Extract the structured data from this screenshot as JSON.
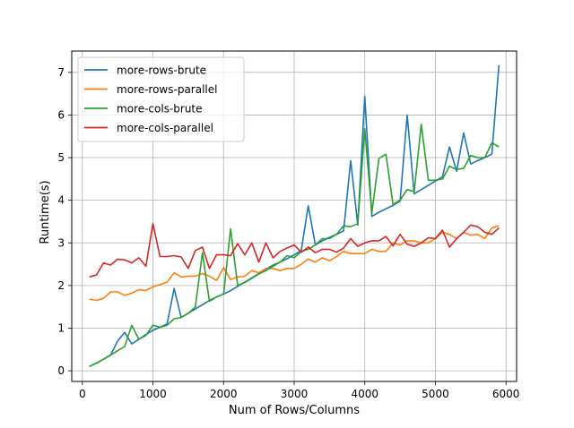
{
  "chart_data": {
    "type": "line",
    "title": "",
    "xlabel": "Num of Rows/Columns",
    "ylabel": "Runtime(s)",
    "xlim": [
      -150,
      6150
    ],
    "ylim": [
      -0.25,
      7.5
    ],
    "xticks": [
      0,
      1000,
      2000,
      3000,
      4000,
      5000,
      6000
    ],
    "yticks": [
      0,
      1,
      2,
      3,
      4,
      5,
      6,
      7
    ],
    "grid": true,
    "legend_position": "top-left",
    "x": [
      100,
      200,
      300,
      400,
      500,
      600,
      700,
      800,
      900,
      1000,
      1100,
      1200,
      1300,
      1400,
      1500,
      1600,
      1700,
      1800,
      1900,
      2000,
      2100,
      2200,
      2300,
      2400,
      2500,
      2600,
      2700,
      2800,
      2900,
      3000,
      3100,
      3200,
      3300,
      3400,
      3500,
      3600,
      3700,
      3800,
      3900,
      4000,
      4100,
      4200,
      4300,
      4400,
      4500,
      4600,
      4700,
      4800,
      4900,
      5000,
      5100,
      5200,
      5300,
      5400,
      5500,
      5600,
      5700,
      5800,
      5900
    ],
    "series": [
      {
        "name": "more-rows-brute",
        "color": "#1f77b4",
        "values": [
          0.1,
          0.18,
          0.27,
          0.37,
          0.7,
          0.9,
          0.63,
          0.74,
          0.85,
          0.95,
          1.02,
          1.1,
          1.93,
          1.25,
          1.35,
          1.45,
          1.55,
          1.65,
          1.73,
          1.8,
          1.88,
          1.98,
          2.08,
          2.18,
          2.28,
          2.38,
          2.48,
          2.55,
          2.63,
          2.72,
          2.82,
          3.87,
          2.95,
          3.05,
          3.13,
          3.2,
          3.28,
          4.93,
          3.42,
          6.44,
          3.62,
          3.72,
          3.8,
          3.88,
          3.98,
          6.0,
          4.15,
          4.25,
          4.35,
          4.45,
          4.55,
          5.25,
          4.68,
          5.58,
          4.85,
          4.93,
          5.0,
          5.08,
          7.17
        ]
      },
      {
        "name": "more-rows-parallel",
        "color": "#ff7f0e",
        "values": [
          1.68,
          1.65,
          1.7,
          1.85,
          1.85,
          1.77,
          1.82,
          1.9,
          1.88,
          1.97,
          2.02,
          2.08,
          2.3,
          2.2,
          2.22,
          2.22,
          2.28,
          2.22,
          2.12,
          2.42,
          2.14,
          2.2,
          2.22,
          2.35,
          2.3,
          2.4,
          2.4,
          2.35,
          2.4,
          2.4,
          2.5,
          2.62,
          2.55,
          2.65,
          2.58,
          2.68,
          2.8,
          2.75,
          2.75,
          2.75,
          2.85,
          2.8,
          2.8,
          3.0,
          2.95,
          3.05,
          3.05,
          3.0,
          3.0,
          3.1,
          3.25,
          3.2,
          3.1,
          3.25,
          3.18,
          3.2,
          3.1,
          3.35,
          3.4
        ]
      },
      {
        "name": "more-cols-brute",
        "color": "#2ca02c",
        "values": [
          0.1,
          0.18,
          0.27,
          0.37,
          0.47,
          0.57,
          1.07,
          0.74,
          0.83,
          1.07,
          1.02,
          1.07,
          1.22,
          1.25,
          1.35,
          1.5,
          2.77,
          1.63,
          1.73,
          1.8,
          3.33,
          2.0,
          2.07,
          2.17,
          2.27,
          2.35,
          2.45,
          2.55,
          2.7,
          2.65,
          2.8,
          2.85,
          2.95,
          3.1,
          3.1,
          3.2,
          3.4,
          3.38,
          3.45,
          5.68,
          3.7,
          4.98,
          5.08,
          3.9,
          4.0,
          4.25,
          4.2,
          5.78,
          4.47,
          4.47,
          4.5,
          4.8,
          4.72,
          4.75,
          5.05,
          5.0,
          5.0,
          5.35,
          5.25
        ]
      },
      {
        "name": "more-cols-parallel",
        "color": "#d62728",
        "values": [
          2.2,
          2.25,
          2.53,
          2.48,
          2.62,
          2.6,
          2.53,
          2.65,
          2.45,
          3.45,
          2.68,
          2.68,
          2.7,
          2.67,
          2.4,
          2.82,
          2.9,
          2.4,
          2.72,
          2.72,
          2.7,
          2.98,
          2.72,
          3.0,
          2.55,
          3.0,
          2.65,
          2.8,
          2.88,
          2.95,
          2.78,
          2.9,
          2.77,
          2.85,
          2.85,
          2.78,
          2.88,
          3.1,
          2.92,
          3.0,
          3.05,
          3.05,
          3.15,
          2.93,
          3.2,
          2.97,
          2.92,
          3.0,
          3.12,
          3.1,
          3.3,
          2.9,
          3.1,
          3.25,
          3.42,
          3.38,
          3.25,
          3.2,
          3.35
        ]
      }
    ]
  }
}
